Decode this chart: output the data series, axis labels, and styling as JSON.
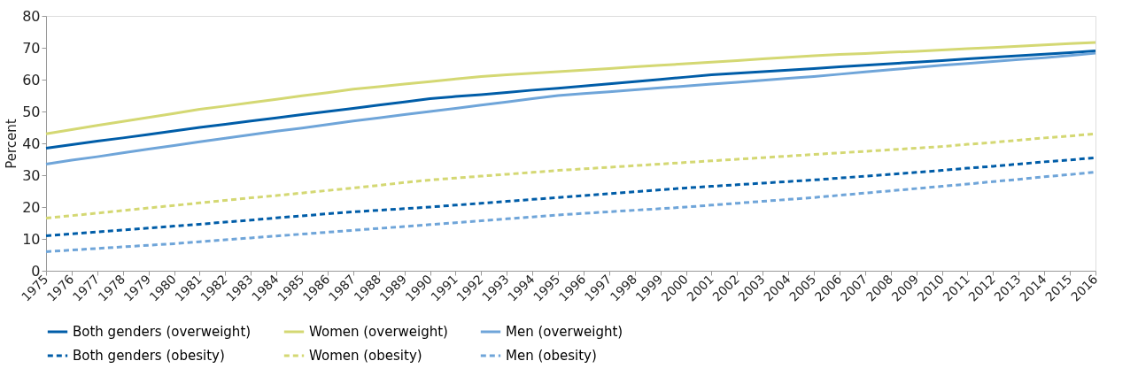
{
  "chart_data": {
    "type": "line",
    "ylabel": "Percent",
    "ylim": [
      0,
      80
    ],
    "yticks": [
      0,
      10,
      20,
      30,
      40,
      50,
      60,
      70,
      80
    ],
    "grid": false,
    "legend": "bottom",
    "marker": "none",
    "categories": [
      "1975",
      "1976",
      "1977",
      "1978",
      "1979",
      "1980",
      "1981",
      "1982",
      "1983",
      "1984",
      "1985",
      "1986",
      "1987",
      "1988",
      "1989",
      "1990",
      "1991",
      "1992",
      "1993",
      "1994",
      "1995",
      "1996",
      "1997",
      "1998",
      "1999",
      "2000",
      "2001",
      "2002",
      "2003",
      "2004",
      "2005",
      "2006",
      "2007",
      "2008",
      "2009",
      "2010",
      "2011",
      "2012",
      "2013",
      "2014",
      "2015",
      "2016"
    ],
    "series": [
      {
        "name": "Both genders (overweight)",
        "color": "#005da8",
        "line_style": "solid",
        "values": [
          38.5,
          39.6,
          40.7,
          41.7,
          42.8,
          43.9,
          45,
          46,
          47,
          48,
          49,
          50,
          51,
          52,
          53,
          54,
          54.7,
          55.3,
          56,
          56.7,
          57.3,
          58,
          58.7,
          59.4,
          60.1,
          60.8,
          61.5,
          62,
          62.5,
          63,
          63.5,
          64,
          64.5,
          65,
          65.5,
          66,
          66.5,
          67,
          67.5,
          68,
          68.5,
          69
        ]
      },
      {
        "name": "Women (overweight)",
        "color": "#d4d873",
        "line_style": "solid",
        "values": [
          43,
          44.3,
          45.6,
          46.9,
          48.1,
          49.4,
          50.7,
          51.7,
          52.8,
          53.8,
          54.9,
          55.9,
          57,
          57.8,
          58.6,
          59.4,
          60.2,
          61,
          61.5,
          62,
          62.5,
          63,
          63.5,
          64,
          64.5,
          65,
          65.5,
          66,
          66.5,
          67,
          67.5,
          67.9,
          68.2,
          68.6,
          68.9,
          69.3,
          69.7,
          70.1,
          70.5,
          70.9,
          71.3,
          71.7
        ]
      },
      {
        "name": "Men (overweight)",
        "color": "#6fa5d9",
        "line_style": "solid",
        "values": [
          33.5,
          34.7,
          35.8,
          37,
          38.2,
          39.3,
          40.5,
          41.6,
          42.7,
          43.8,
          44.8,
          45.9,
          47,
          48,
          49,
          50,
          51,
          52,
          53,
          54,
          55,
          55.6,
          56.2,
          56.8,
          57.4,
          58,
          58.6,
          59.2,
          59.8,
          60.4,
          61,
          61.7,
          62.4,
          63.1,
          63.8,
          64.5,
          65.1,
          65.7,
          66.3,
          66.9,
          67.6,
          68.3
        ]
      },
      {
        "name": "Both genders (obesity)",
        "color": "#005da8",
        "line_style": "dashed",
        "values": [
          11,
          11.6,
          12.2,
          12.8,
          13.4,
          14,
          14.6,
          15.3,
          15.9,
          16.6,
          17.2,
          17.9,
          18.5,
          19,
          19.5,
          20,
          20.6,
          21.2,
          21.8,
          22.4,
          23,
          23.6,
          24.2,
          24.8,
          25.4,
          26,
          26.5,
          27,
          27.5,
          28,
          28.5,
          29.1,
          29.7,
          30.3,
          30.9,
          31.5,
          32.2,
          32.8,
          33.5,
          34.2,
          34.8,
          35.5
        ]
      },
      {
        "name": "Women (obesity)",
        "color": "#d4d873",
        "line_style": "dashed",
        "values": [
          16.5,
          17.3,
          18.1,
          18.9,
          19.7,
          20.5,
          21.3,
          22.1,
          22.9,
          23.6,
          24.4,
          25.2,
          26,
          26.8,
          27.7,
          28.5,
          29.1,
          29.7,
          30.3,
          30.9,
          31.5,
          32,
          32.5,
          33,
          33.5,
          34,
          34.5,
          35,
          35.5,
          36,
          36.5,
          37,
          37.5,
          38,
          38.5,
          39,
          39.7,
          40.3,
          41,
          41.7,
          42.3,
          43
        ]
      },
      {
        "name": "Men (obesity)",
        "color": "#6fa5d9",
        "line_style": "dashed",
        "values": [
          6,
          6.5,
          7,
          7.5,
          8,
          8.5,
          9.1,
          9.7,
          10.3,
          10.9,
          11.5,
          12.1,
          12.7,
          13.3,
          13.9,
          14.5,
          15.1,
          15.7,
          16.3,
          16.9,
          17.5,
          18,
          18.5,
          19,
          19.5,
          20,
          20.6,
          21.2,
          21.8,
          22.4,
          23,
          23.7,
          24.4,
          25.1,
          25.8,
          26.5,
          27.2,
          28,
          28.7,
          29.5,
          30.2,
          31
        ]
      }
    ]
  }
}
